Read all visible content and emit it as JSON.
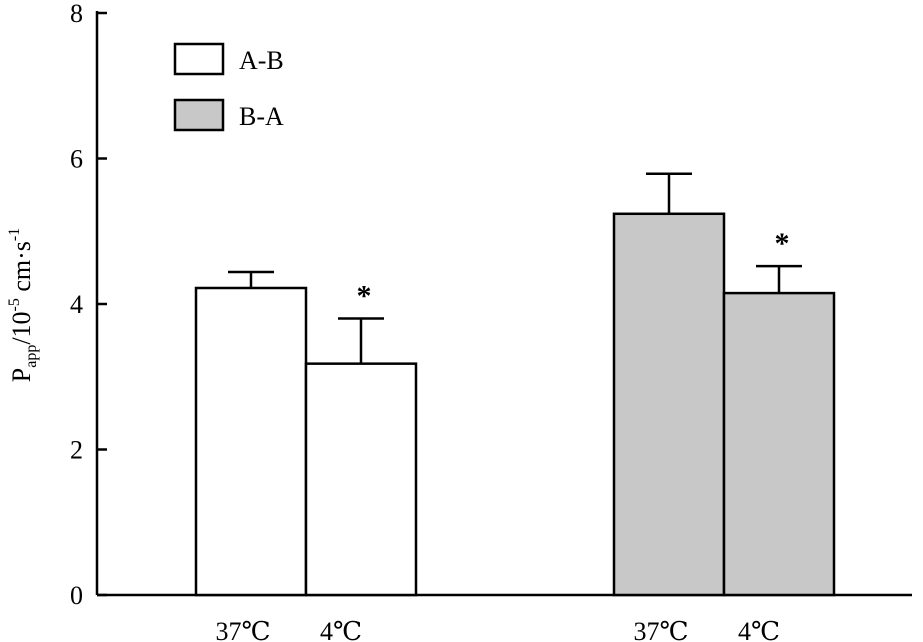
{
  "chart_data": {
    "type": "bar",
    "title": "",
    "xlabel": "",
    "ylabel_main": "P",
    "ylabel_sub": "app",
    "ylabel_mid": "/10",
    "ylabel_exp1": "-5",
    "ylabel_unit": " cm·s",
    "ylabel_exp2": "-1",
    "ylim": [
      0,
      8
    ],
    "yticks": [
      "0",
      "2",
      "4",
      "6",
      "8"
    ],
    "legend_position": "top-left",
    "grid": false,
    "colors": {
      "A-B": "#ffffff",
      "B-A": "#c8c8c8",
      "edge": "#000000"
    },
    "series": [
      {
        "name": "A-B",
        "categories": [
          "37℃",
          "4℃"
        ],
        "values": [
          4.22,
          3.18
        ],
        "errors": [
          0.22,
          0.62
        ],
        "marks": [
          "",
          "*"
        ]
      },
      {
        "name": "B-A",
        "categories": [
          "37℃",
          "4℃"
        ],
        "values": [
          5.24,
          4.15
        ],
        "errors": [
          0.55,
          0.37
        ],
        "marks": [
          "",
          "*"
        ]
      }
    ]
  }
}
